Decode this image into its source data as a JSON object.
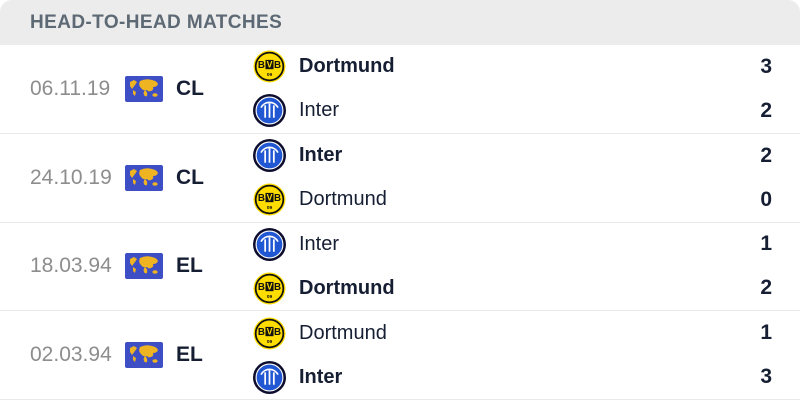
{
  "header": {
    "title": "HEAD-TO-HEAD MATCHES"
  },
  "icons": {
    "flag": "international-competition-flag-icon",
    "dortmund": "dortmund-logo-icon",
    "inter": "inter-logo-icon"
  },
  "colors": {
    "header_bg": "#ececec",
    "header_text": "#5d6974",
    "muted_text": "#8d8d8d",
    "dark_text": "#161e33",
    "divider": "#e9e9e9",
    "flag_blue": "#3e4ec4",
    "map_gold": "#efb422",
    "bvb_yellow": "#ffdd00",
    "bvb_black": "#111111",
    "inter_navy": "#0d0d2e",
    "inter_blue": "#2157d2"
  },
  "matches": [
    {
      "date": "06.11.19",
      "competition": "CL",
      "teams": [
        {
          "name": "Dortmund",
          "logo": "dortmund",
          "score": "3",
          "winner": true
        },
        {
          "name": "Inter",
          "logo": "inter",
          "score": "2",
          "winner": false
        }
      ]
    },
    {
      "date": "24.10.19",
      "competition": "CL",
      "teams": [
        {
          "name": "Inter",
          "logo": "inter",
          "score": "2",
          "winner": true
        },
        {
          "name": "Dortmund",
          "logo": "dortmund",
          "score": "0",
          "winner": false
        }
      ]
    },
    {
      "date": "18.03.94",
      "competition": "EL",
      "teams": [
        {
          "name": "Inter",
          "logo": "inter",
          "score": "1",
          "winner": false
        },
        {
          "name": "Dortmund",
          "logo": "dortmund",
          "score": "2",
          "winner": true
        }
      ]
    },
    {
      "date": "02.03.94",
      "competition": "EL",
      "teams": [
        {
          "name": "Dortmund",
          "logo": "dortmund",
          "score": "1",
          "winner": false
        },
        {
          "name": "Inter",
          "logo": "inter",
          "score": "3",
          "winner": true
        }
      ]
    }
  ]
}
